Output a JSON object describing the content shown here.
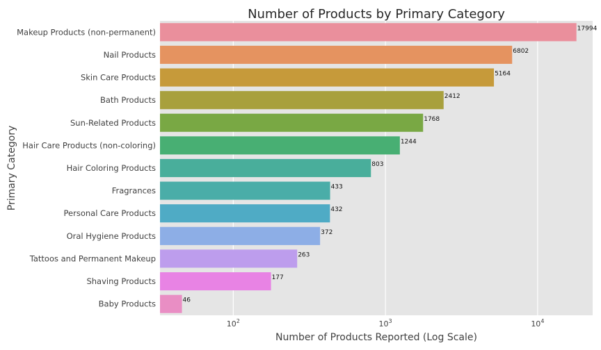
{
  "chart_data": {
    "type": "bar",
    "orientation": "horizontal",
    "title": "Number of Products by Primary Category",
    "xlabel": "Number of Products Reported (Log Scale)",
    "ylabel": "Primary Category",
    "xscale": "log",
    "xlim": [
      33,
      23000
    ],
    "x_ticks": [
      {
        "value": 100,
        "label": "10",
        "exp": "2"
      },
      {
        "value": 1000,
        "label": "10",
        "exp": "3"
      },
      {
        "value": 10000,
        "label": "10",
        "exp": "4"
      }
    ],
    "grid": true,
    "categories": [
      "Makeup Products (non-permanent)",
      "Nail Products",
      "Skin Care Products ",
      "Bath Products",
      "Sun-Related Products",
      "Hair Care Products (non-coloring)",
      "Hair Coloring Products",
      "Fragrances",
      "Personal Care Products",
      "Oral Hygiene Products",
      "Tattoos and Permanent Makeup",
      "Shaving Products",
      "Baby Products"
    ],
    "values": [
      17994,
      6802,
      5164,
      2412,
      1768,
      1244,
      803,
      433,
      432,
      372,
      263,
      177,
      46
    ],
    "colors": [
      "#ea8f9c",
      "#e59360",
      "#c69a3a",
      "#a8a03d",
      "#79a844",
      "#48af73",
      "#49ae9b",
      "#4aada8",
      "#4fabc5",
      "#8daee6",
      "#bd9ded",
      "#e883e4",
      "#e98ec4"
    ],
    "background_color": "#e5e5e5"
  }
}
